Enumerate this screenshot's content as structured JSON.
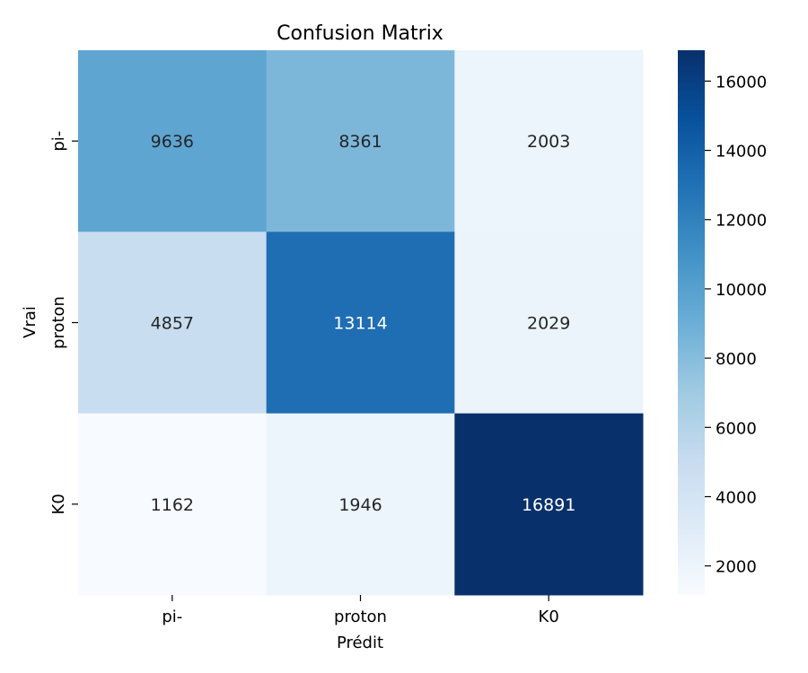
{
  "chart_data": {
    "type": "heatmap",
    "title": "Confusion Matrix",
    "xlabel": "Prédit",
    "ylabel": "Vrai",
    "x_categories": [
      "pi-",
      "proton",
      "K0"
    ],
    "y_categories": [
      "pi-",
      "proton",
      "K0"
    ],
    "values": [
      [
        9636,
        8361,
        2003
      ],
      [
        4857,
        13114,
        2029
      ],
      [
        1162,
        1946,
        16891
      ]
    ],
    "colormap": "Blues",
    "colorbar": {
      "range": [
        1162,
        16891
      ],
      "ticks": [
        2000,
        4000,
        6000,
        8000,
        10000,
        12000,
        14000,
        16000
      ]
    },
    "text_colors": {
      "dark": "#262626",
      "light": "#ffffff"
    }
  }
}
